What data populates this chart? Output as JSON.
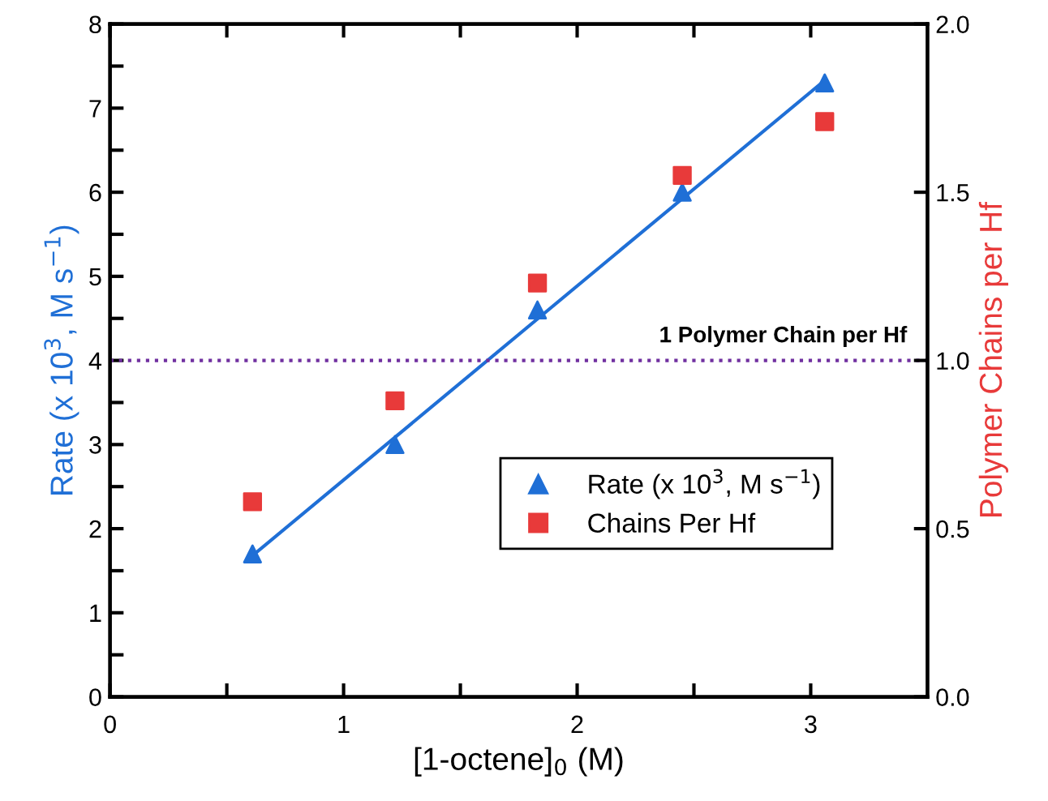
{
  "chart_data": {
    "type": "scatter",
    "xlabel": "[1-octene]$_{0}$ (M)",
    "ylabel": "Rate (x 10$^{3}$, M s$^{−1}$)",
    "y2label": "Polymer Chains per Hf",
    "xlim": [
      0,
      3.5
    ],
    "xticks": [
      0,
      {
        "value": 0.5,
        "label": null
      },
      1,
      {
        "value": 1.5,
        "label": null
      },
      2,
      {
        "value": 2.5,
        "label": null
      },
      3
    ],
    "ylim": [
      0,
      8
    ],
    "yticks": [
      0,
      {
        "value": 0.5,
        "label": null
      },
      1,
      {
        "value": 1.5,
        "label": null
      },
      2,
      {
        "value": 2.5,
        "label": null
      },
      3,
      {
        "value": 3.5,
        "label": null
      },
      4,
      {
        "value": 4.5,
        "label": null
      },
      5,
      {
        "value": 5.5,
        "label": null
      },
      6,
      {
        "value": 6.5,
        "label": null
      },
      7,
      {
        "value": 7.5,
        "label": null
      },
      8
    ],
    "y2lim": [
      0,
      2
    ],
    "y2ticks": [
      {
        "value": 0,
        "label": "0.0"
      },
      0.5,
      {
        "value": 1,
        "label": "1.0"
      },
      1.5,
      {
        "value": 2,
        "label": "2.0"
      }
    ],
    "x": [
      0.61,
      1.22,
      1.83,
      2.45,
      3.06
    ],
    "series": [
      {
        "name": "Rate (x 10$^{3}$, M s$^{−1}$)",
        "color": "#1f6fd6",
        "marker": "triangle",
        "values": [
          1.7,
          3.0,
          4.6,
          6.0,
          7.3
        ]
      },
      {
        "name": "Chains Per Hf",
        "color": "#e83a3a",
        "marker": "square",
        "axis": "y2",
        "values": [
          0.58,
          0.88,
          1.23,
          1.55,
          1.71
        ]
      },
      {
        "type": "line",
        "color": "#1f6fd6",
        "line_style": "solid",
        "x": [
          0.61,
          3.06
        ],
        "values": [
          1.68,
          7.33
        ]
      }
    ],
    "ref_lines": [
      {
        "axis": "y",
        "value": 4,
        "label": "1 Polymer Chain per Hf",
        "color": "#7030a0",
        "line_style": "dotted"
      }
    ],
    "legend": "lower right",
    "grid": false
  }
}
